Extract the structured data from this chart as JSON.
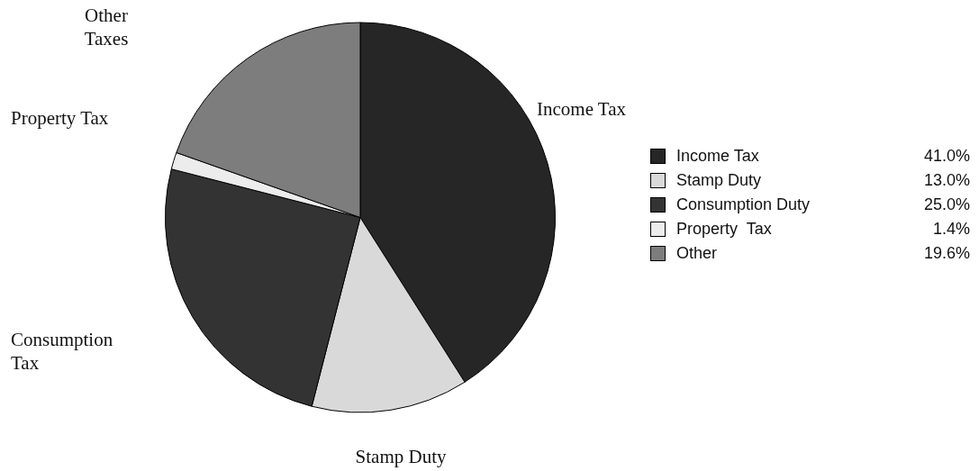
{
  "chart_data": {
    "type": "pie",
    "categories": [
      "Income Tax",
      "Stamp Duty",
      "Consumption Duty",
      "Property  Tax",
      "Other"
    ],
    "values": [
      41.0,
      13.0,
      25.0,
      1.4,
      19.6
    ],
    "value_labels": [
      "41.0%",
      "13.0%",
      "25.0%",
      "1.4%",
      "19.6%"
    ],
    "colors": [
      "#262626",
      "#d9d9d9",
      "#333333",
      "#ececec",
      "#7d7d7d"
    ],
    "annotations": [
      "Income Tax",
      "Stamp Duty",
      "Consumption Tax",
      "Property Tax",
      "Other Taxes"
    ],
    "legend": "right"
  }
}
